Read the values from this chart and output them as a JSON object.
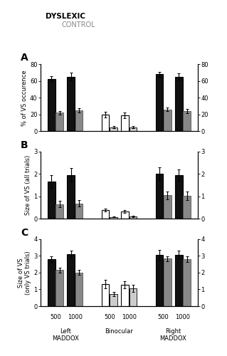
{
  "title_dyslexic": "DYSLEXIC",
  "title_control": "CONTROL",
  "panel_labels": [
    "A",
    "B",
    "C"
  ],
  "group_names": [
    "Left MADDOX",
    "Binocular",
    "Right MADDOX"
  ],
  "panel_A": {
    "ylabel": "% of VS occurence",
    "ylim": [
      0,
      80
    ],
    "yticks": [
      0,
      20,
      40,
      60,
      80
    ],
    "groups": {
      "Left MADDOX": {
        "dyslexic_500": {
          "val": 62,
          "err": 3.5
        },
        "control_500": {
          "val": 22,
          "err": 2.0
        },
        "dyslexic_1000": {
          "val": 65,
          "err": 4.5
        },
        "control_1000": {
          "val": 25,
          "err": 2.5
        }
      },
      "Binocular": {
        "dyslexic_500": {
          "val": 20,
          "err": 3.5
        },
        "control_500": {
          "val": 5,
          "err": 1.0
        },
        "dyslexic_1000": {
          "val": 19,
          "err": 3.0
        },
        "control_1000": {
          "val": 5,
          "err": 1.0
        }
      },
      "Right MADDOX": {
        "dyslexic_500": {
          "val": 68,
          "err": 3.0
        },
        "control_500": {
          "val": 26,
          "err": 2.0
        },
        "dyslexic_1000": {
          "val": 65,
          "err": 4.0
        },
        "control_1000": {
          "val": 24,
          "err": 2.5
        }
      }
    }
  },
  "panel_B": {
    "ylabel": "Size of VS (all trials)",
    "ylim": [
      0,
      3
    ],
    "yticks": [
      0,
      1,
      2,
      3
    ],
    "groups": {
      "Left MADDOX": {
        "dyslexic_500": {
          "val": 1.65,
          "err": 0.28
        },
        "control_500": {
          "val": 0.65,
          "err": 0.15
        },
        "dyslexic_1000": {
          "val": 1.95,
          "err": 0.3
        },
        "control_1000": {
          "val": 0.68,
          "err": 0.14
        }
      },
      "Binocular": {
        "dyslexic_500": {
          "val": 0.38,
          "err": 0.07
        },
        "control_500": {
          "val": 0.08,
          "err": 0.02
        },
        "dyslexic_1000": {
          "val": 0.33,
          "err": 0.06
        },
        "control_1000": {
          "val": 0.1,
          "err": 0.02
        }
      },
      "Right MADDOX": {
        "dyslexic_500": {
          "val": 2.0,
          "err": 0.28
        },
        "control_500": {
          "val": 1.05,
          "err": 0.18
        },
        "dyslexic_1000": {
          "val": 1.95,
          "err": 0.25
        },
        "control_1000": {
          "val": 1.02,
          "err": 0.18
        }
      }
    }
  },
  "panel_C": {
    "ylabel": "Size of VS\n(only VS trials)",
    "ylim": [
      0,
      4
    ],
    "yticks": [
      0,
      1,
      2,
      3,
      4
    ],
    "groups": {
      "Left MADDOX": {
        "dyslexic_500": {
          "val": 2.8,
          "err": 0.18
        },
        "control_500": {
          "val": 2.15,
          "err": 0.14
        },
        "dyslexic_1000": {
          "val": 3.1,
          "err": 0.22
        },
        "control_1000": {
          "val": 2.0,
          "err": 0.14
        }
      },
      "Binocular": {
        "dyslexic_500": {
          "val": 1.3,
          "err": 0.25
        },
        "control_500": {
          "val": 0.72,
          "err": 0.14
        },
        "dyslexic_1000": {
          "val": 1.28,
          "err": 0.22
        },
        "control_1000": {
          "val": 1.05,
          "err": 0.2
        }
      },
      "Right MADDOX": {
        "dyslexic_500": {
          "val": 3.05,
          "err": 0.28
        },
        "control_500": {
          "val": 2.82,
          "err": 0.14
        },
        "dyslexic_1000": {
          "val": 3.05,
          "err": 0.24
        },
        "control_1000": {
          "val": 2.8,
          "err": 0.18
        }
      }
    }
  },
  "colors": {
    "dyslexic_maddox": "#111111",
    "control_maddox": "#888888",
    "dyslexic_binocular": "#ffffff",
    "control_binocular": "#cccccc"
  }
}
